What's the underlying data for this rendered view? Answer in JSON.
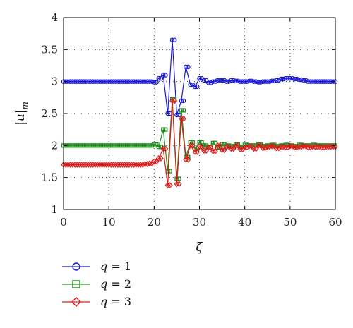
{
  "chart_data": {
    "type": "line",
    "title": "",
    "xlabel": "ζ",
    "ylabel": "|u|_m",
    "xlim": [
      0,
      60
    ],
    "ylim": [
      1,
      4
    ],
    "xticks": [
      0,
      10,
      20,
      30,
      40,
      50,
      60
    ],
    "yticks": [
      1,
      1.5,
      2,
      2.5,
      3,
      3.5,
      4
    ],
    "grid": true,
    "legend_position": "below-left",
    "series": [
      {
        "name": "q = 1",
        "var": "q",
        "val": "1",
        "color": "#1a1ad6",
        "marker": "circle",
        "x": [
          0,
          1,
          2,
          3,
          4,
          5,
          6,
          7,
          8,
          9,
          10,
          11,
          12,
          13,
          14,
          15,
          16,
          17,
          18,
          19,
          20,
          21,
          22,
          23,
          24,
          25,
          26,
          27,
          28,
          29,
          30,
          31,
          32,
          33,
          34,
          35,
          36,
          37,
          38,
          39,
          40,
          41,
          42,
          43,
          44,
          45,
          46,
          47,
          48,
          49,
          50,
          51,
          52,
          53,
          54,
          55,
          56,
          57,
          58,
          59,
          60
        ],
        "y": [
          3.0,
          3.0,
          3.0,
          3.0,
          3.0,
          3.0,
          3.0,
          3.0,
          3.0,
          3.0,
          3.0,
          3.0,
          3.0,
          3.0,
          3.0,
          3.0,
          3.0,
          3.0,
          3.0,
          3.0,
          2.99,
          3.05,
          3.1,
          2.5,
          3.65,
          2.48,
          2.7,
          3.23,
          2.95,
          2.92,
          3.05,
          3.02,
          2.98,
          3.0,
          3.02,
          3.02,
          3.0,
          3.02,
          3.01,
          3.0,
          3.0,
          3.01,
          3.0,
          2.99,
          3.0,
          3.0,
          3.01,
          3.02,
          3.04,
          3.05,
          3.05,
          3.04,
          3.03,
          3.02,
          3.0,
          3.0,
          3.0,
          3.0,
          3.0,
          3.0,
          3.0
        ]
      },
      {
        "name": "q = 2",
        "var": "q",
        "val": "2",
        "color": "#1e8c1e",
        "marker": "square",
        "x": [
          0,
          1,
          2,
          3,
          4,
          5,
          6,
          7,
          8,
          9,
          10,
          11,
          12,
          13,
          14,
          15,
          16,
          17,
          18,
          19,
          20,
          21,
          22,
          23,
          24,
          25,
          26,
          27,
          28,
          29,
          30,
          31,
          32,
          33,
          34,
          35,
          36,
          37,
          38,
          39,
          40,
          41,
          42,
          43,
          44,
          45,
          46,
          47,
          48,
          49,
          50,
          51,
          52,
          53,
          54,
          55,
          56,
          57,
          58,
          59,
          60
        ],
        "y": [
          2.0,
          2.0,
          2.0,
          2.0,
          2.0,
          2.0,
          2.0,
          2.0,
          2.0,
          2.0,
          2.0,
          2.0,
          2.0,
          2.0,
          2.0,
          2.0,
          2.0,
          2.0,
          2.0,
          2.0,
          2.02,
          1.98,
          2.25,
          1.6,
          2.72,
          1.48,
          2.55,
          1.82,
          2.05,
          1.95,
          2.05,
          2.0,
          1.98,
          2.04,
          1.97,
          2.02,
          2.0,
          1.99,
          2.02,
          1.98,
          2.01,
          2.0,
          2.0,
          2.02,
          1.99,
          2.0,
          2.01,
          1.99,
          2.0,
          2.01,
          2.0,
          1.99,
          2.01,
          2.0,
          2.0,
          2.01,
          2.0,
          2.0,
          2.0,
          2.0,
          2.0
        ]
      },
      {
        "name": "q = 3",
        "var": "q",
        "val": "3",
        "color": "#e01a1a",
        "marker": "diamond",
        "x": [
          0,
          1,
          2,
          3,
          4,
          5,
          6,
          7,
          8,
          9,
          10,
          11,
          12,
          13,
          14,
          15,
          16,
          17,
          18,
          19,
          20,
          21,
          22,
          23,
          24,
          25,
          26,
          27,
          28,
          29,
          30,
          31,
          32,
          33,
          34,
          35,
          36,
          37,
          38,
          39,
          40,
          41,
          42,
          43,
          44,
          45,
          46,
          47,
          48,
          49,
          50,
          51,
          52,
          53,
          54,
          55,
          56,
          57,
          58,
          59,
          60
        ],
        "y": [
          1.7,
          1.7,
          1.7,
          1.7,
          1.7,
          1.7,
          1.7,
          1.7,
          1.7,
          1.7,
          1.7,
          1.7,
          1.7,
          1.7,
          1.7,
          1.7,
          1.7,
          1.7,
          1.71,
          1.72,
          1.75,
          1.8,
          1.95,
          1.38,
          2.7,
          1.4,
          2.42,
          1.78,
          2.0,
          1.9,
          1.98,
          1.92,
          1.97,
          1.91,
          2.0,
          1.93,
          1.98,
          1.95,
          2.0,
          1.94,
          1.97,
          1.99,
          1.95,
          2.0,
          1.96,
          1.98,
          1.99,
          1.96,
          1.98,
          1.97,
          1.99,
          1.97,
          1.98,
          1.99,
          1.97,
          1.98,
          1.98,
          1.97,
          1.98,
          1.98,
          1.98
        ]
      }
    ]
  }
}
